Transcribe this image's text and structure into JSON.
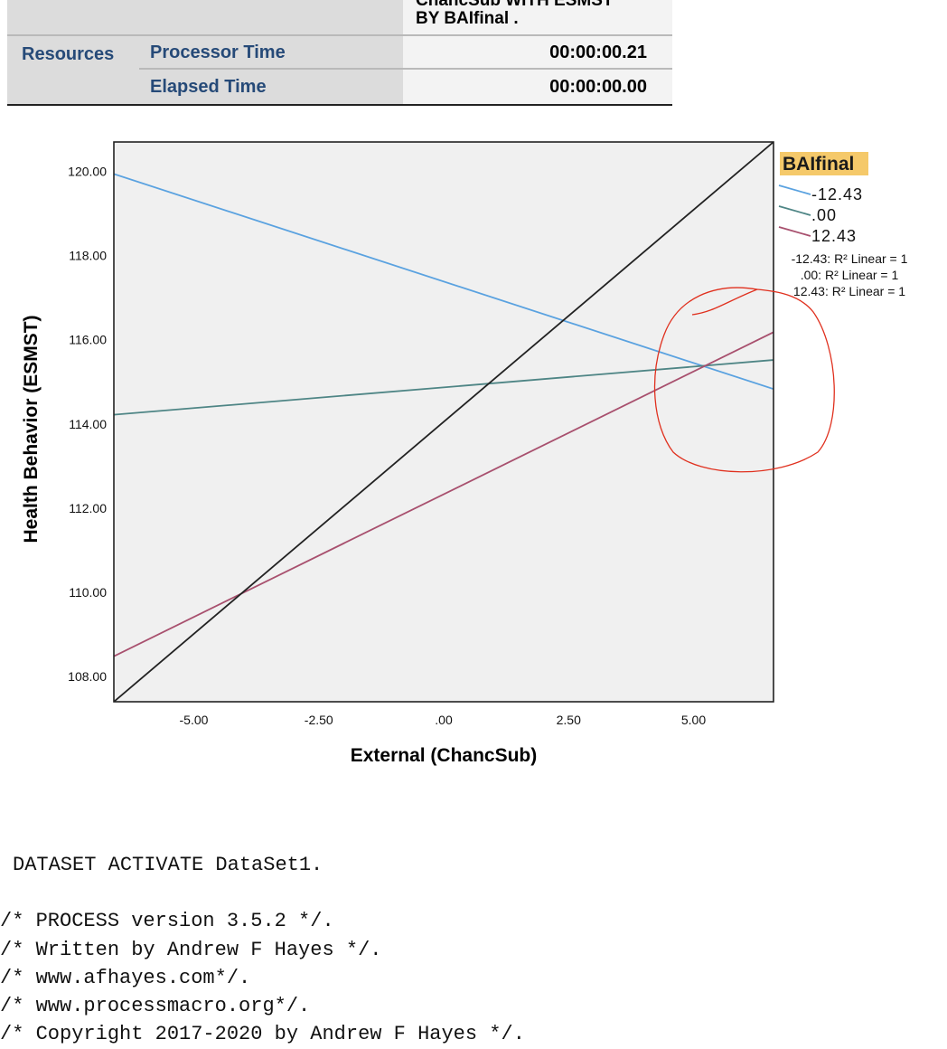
{
  "table": {
    "cmd_line1": "ChancSub WITH ESMST",
    "cmd_line2": "BY BAIfinal .",
    "resources_label": "Resources",
    "rows": [
      {
        "label": "Processor Time",
        "value": "00:00:00.21"
      },
      {
        "label": "Elapsed Time",
        "value": "00:00:00.00"
      }
    ]
  },
  "chart_data": {
    "type": "line",
    "xlabel": "External (ChancSub)",
    "ylabel": "Health Behavior (ESMST)",
    "xlim": [
      -6.6,
      6.6
    ],
    "ylim": [
      107.4,
      120.7
    ],
    "xticks": [
      -5,
      -2.5,
      0,
      2.5,
      5
    ],
    "xtick_labels": [
      "-5.00",
      "-2.50",
      ".00",
      "2.50",
      "5.00"
    ],
    "yticks": [
      108,
      110,
      112,
      114,
      116,
      118,
      120
    ],
    "ytick_labels": [
      "108.00",
      "110.00",
      "112.00",
      "114.00",
      "116.00",
      "118.00",
      "120.00"
    ],
    "legend_title": "BAIfinal",
    "legend_position": "right",
    "series": [
      {
        "name": "-12.43",
        "color": "#5aa2e0",
        "x": [
          -6.6,
          6.6
        ],
        "y": [
          119.94,
          114.83
        ]
      },
      {
        "name": ".00",
        "color": "#4e8585",
        "x": [
          -6.6,
          6.6
        ],
        "y": [
          114.22,
          115.52
        ]
      },
      {
        "name": "12.43",
        "color": "#a8506e",
        "x": [
          -6.6,
          6.6
        ],
        "y": [
          108.48,
          116.18
        ]
      },
      {
        "name": "",
        "color": "#222222",
        "x": [
          -6.6,
          6.6
        ],
        "y": [
          107.4,
          120.7
        ]
      }
    ],
    "r2_lines": [
      {
        "group": "-12.43",
        "text": "R² Linear = 1"
      },
      {
        "group": ".00",
        "text": "R² Linear = 1"
      },
      {
        "group": "12.43",
        "text": "R² Linear = 1"
      }
    ],
    "plot_bg": "#f0f0f0",
    "legend_highlight": "#f5c96a",
    "annotation_color": "#e0301e"
  },
  "syntax": {
    "lines": [
      "DATASET ACTIVATE DataSet1.",
      "/* PROCESS version 3.5.2 */.",
      "/* Written by Andrew F Hayes */.",
      "/* www.afhayes.com*/.",
      "/* www.processmacro.org*/.",
      "/* Copyright 2017-2020 by Andrew F Hayes */."
    ]
  }
}
